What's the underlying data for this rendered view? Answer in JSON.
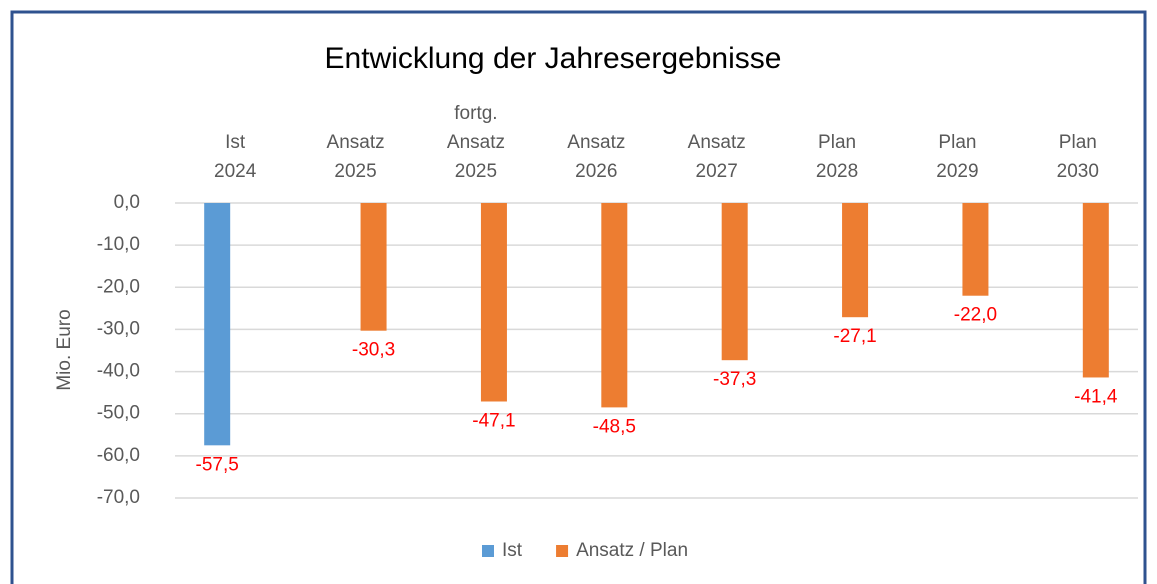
{
  "chart_data": {
    "type": "bar",
    "title": "Entwicklung der Jahresergebnisse",
    "y_label": "Mio. Euro",
    "categories": [
      [
        "Ist",
        "2024"
      ],
      [
        "Ansatz",
        "2025"
      ],
      [
        "fortg.",
        "Ansatz",
        "2025"
      ],
      [
        "Ansatz",
        "2026"
      ],
      [
        "Ansatz",
        "2027"
      ],
      [
        "Plan",
        "2028"
      ],
      [
        "Plan",
        "2029"
      ],
      [
        "Plan",
        "2030"
      ]
    ],
    "series": [
      {
        "name": "Ist",
        "color": "#5b9bd5",
        "values": [
          -57.5,
          null,
          null,
          null,
          null,
          null,
          null,
          null
        ],
        "value_labels": [
          "-57,5",
          null,
          null,
          null,
          null,
          null,
          null,
          null
        ]
      },
      {
        "name": "Ansatz / Plan",
        "color": "#ed7d31",
        "values": [
          null,
          -30.3,
          -47.1,
          -48.5,
          -37.3,
          -27.1,
          -22.0,
          -41.4
        ],
        "value_labels": [
          null,
          "-30,3",
          "-47,1",
          "-48,5",
          "-37,3",
          "-27,1",
          "-22,0",
          "-41,4"
        ]
      }
    ],
    "value_label_color": "#ff0000",
    "ylim": [
      -70,
      0
    ],
    "yticks": [
      {
        "value": 0,
        "label": "0,0"
      },
      {
        "value": -10,
        "label": "-10,0"
      },
      {
        "value": -20,
        "label": "-20,0"
      },
      {
        "value": -30,
        "label": "-30,0"
      },
      {
        "value": -40,
        "label": "-40,0"
      },
      {
        "value": -50,
        "label": "-50,0"
      },
      {
        "value": -60,
        "label": "-60,0"
      },
      {
        "value": -70,
        "label": "-70,0"
      }
    ],
    "grid": true,
    "legend": "bottom"
  }
}
